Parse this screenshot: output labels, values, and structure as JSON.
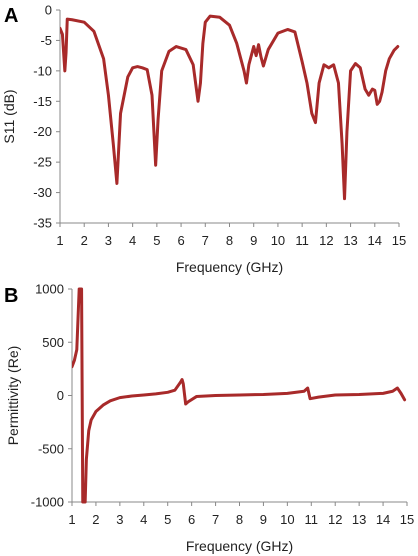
{
  "colors": {
    "series": "#a82a2a",
    "axis": "#888888",
    "text": "#222222"
  },
  "chart_data": [
    {
      "type": "line",
      "panel_label": "A",
      "xlabel": "Frequency (GHz)",
      "ylabel": "S11 (dB)",
      "xlim": [
        1,
        15
      ],
      "ylim": [
        -35,
        0
      ],
      "xticks": [
        1,
        2,
        3,
        4,
        5,
        6,
        7,
        8,
        9,
        10,
        11,
        12,
        13,
        14,
        15
      ],
      "yticks": [
        0,
        -5,
        -10,
        -15,
        -20,
        -25,
        -30,
        -35
      ],
      "grid": false,
      "series": [
        {
          "x": [
            1.0,
            1.1,
            1.2,
            1.25,
            1.3,
            1.5,
            2.0,
            2.4,
            2.8,
            3.0,
            3.2,
            3.35,
            3.5,
            3.8,
            4.0,
            4.2,
            4.4,
            4.6,
            4.8,
            4.95,
            5.05,
            5.2,
            5.5,
            5.8,
            6.2,
            6.5,
            6.7,
            6.8,
            6.9,
            7.0,
            7.2,
            7.6,
            8.0,
            8.3,
            8.6,
            8.7,
            8.8,
            9.0,
            9.1,
            9.2,
            9.3,
            9.4,
            9.6,
            10.0,
            10.4,
            10.7,
            11.0,
            11.2,
            11.4,
            11.55,
            11.7,
            11.9,
            12.1,
            12.3,
            12.5,
            12.65,
            12.75,
            12.85,
            13.0,
            13.2,
            13.4,
            13.6,
            13.75,
            13.9,
            14.0,
            14.1,
            14.2,
            14.3,
            14.45,
            14.6,
            14.8,
            14.95
          ],
          "y": [
            -3,
            -4,
            -10,
            -7,
            -1.5,
            -1.6,
            -2,
            -3.5,
            -8,
            -14,
            -22,
            -28.5,
            -17,
            -11,
            -9.5,
            -9.3,
            -9.5,
            -9.8,
            -14,
            -25.5,
            -18,
            -10,
            -6.8,
            -6,
            -6.5,
            -9,
            -15,
            -12,
            -5.5,
            -2,
            -1,
            -1.2,
            -2.5,
            -5.5,
            -10,
            -12,
            -9,
            -6,
            -7.5,
            -5.7,
            -7.7,
            -9.2,
            -6.5,
            -3.8,
            -3.2,
            -3.6,
            -8.5,
            -12,
            -17,
            -18.5,
            -12,
            -9,
            -9.5,
            -9,
            -12,
            -22,
            -31,
            -20,
            -10,
            -8.8,
            -9.5,
            -13,
            -14,
            -13,
            -13.2,
            -15.5,
            -15,
            -13.5,
            -10,
            -8,
            -6.6,
            -6
          ]
        }
      ]
    },
    {
      "type": "line",
      "panel_label": "B",
      "xlabel": "Frequency (GHz)",
      "ylabel": "Permittivity (Re)",
      "xlim": [
        1,
        15
      ],
      "ylim": [
        -1000,
        1000
      ],
      "xticks": [
        1,
        2,
        3,
        4,
        5,
        6,
        7,
        8,
        9,
        10,
        11,
        12,
        13,
        14,
        15
      ],
      "yticks": [
        1000,
        500,
        0,
        -500,
        -1000
      ],
      "grid": false,
      "series": [
        {
          "x": [
            1.0,
            1.1,
            1.2,
            1.3,
            1.35,
            1.4,
            1.45,
            1.5,
            1.55,
            1.6,
            1.7,
            1.8,
            2.0,
            2.3,
            2.6,
            3.0,
            3.5,
            4.0,
            4.5,
            5.0,
            5.3,
            5.55,
            5.6,
            5.65,
            5.75,
            5.85,
            6.2,
            7.0,
            8.0,
            9.0,
            10.0,
            10.7,
            10.85,
            10.95,
            11.3,
            12.0,
            13.0,
            14.0,
            14.4,
            14.6,
            14.75,
            14.9
          ],
          "y": [
            270,
            330,
            430,
            1000,
            1000,
            1000,
            -1000,
            -1000,
            -1000,
            -600,
            -330,
            -230,
            -150,
            -90,
            -50,
            -20,
            -5,
            5,
            15,
            30,
            50,
            130,
            150,
            110,
            -80,
            -60,
            -10,
            0,
            5,
            10,
            20,
            40,
            70,
            -30,
            -15,
            5,
            10,
            20,
            40,
            70,
            20,
            -40
          ]
        }
      ]
    }
  ]
}
